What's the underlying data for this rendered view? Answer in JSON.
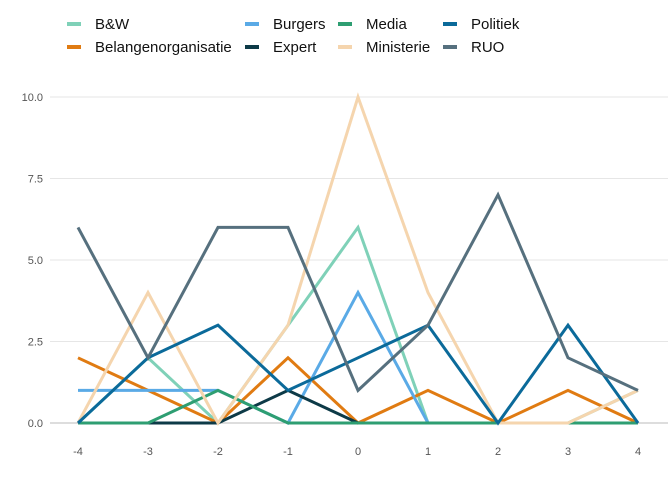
{
  "chart_data": {
    "type": "line",
    "x": [
      -4,
      -3,
      -2,
      -1,
      0,
      1,
      2,
      3,
      4
    ],
    "x_tick_labels": [
      "-4",
      "-3",
      "-2",
      "-1",
      "0",
      "1",
      "2",
      "3",
      "4"
    ],
    "ylim": [
      0,
      10
    ],
    "y_ticks": [
      0,
      2.5,
      5,
      7.5,
      10
    ],
    "y_tick_labels": [
      "0.0",
      "2.5",
      "5.0",
      "7.5",
      "10.0"
    ],
    "grid": "horizontal",
    "legend_position": "top",
    "series": [
      {
        "name": "B&W",
        "color": "#7fd1b8",
        "values": [
          0,
          2,
          0,
          3,
          6,
          0,
          0,
          0,
          1
        ]
      },
      {
        "name": "Belangenorganisatie",
        "color": "#e07b12",
        "values": [
          2,
          1,
          0,
          2,
          0,
          1,
          0,
          1,
          0
        ]
      },
      {
        "name": "Burgers",
        "color": "#5aaae6",
        "values": [
          1,
          1,
          1,
          0,
          4,
          0,
          0,
          0,
          0
        ]
      },
      {
        "name": "Expert",
        "color": "#0d3a47",
        "values": [
          0,
          0,
          0,
          1,
          0,
          0,
          0,
          0,
          0
        ]
      },
      {
        "name": "Media",
        "color": "#2e9e72",
        "values": [
          0,
          0,
          1,
          0,
          0,
          0,
          0,
          0,
          0
        ]
      },
      {
        "name": "Ministerie",
        "color": "#f5d5ae",
        "values": [
          0,
          4,
          0,
          3,
          10,
          4,
          0,
          0,
          1
        ]
      },
      {
        "name": "Politiek",
        "color": "#0b6a9a",
        "values": [
          0,
          2,
          3,
          1,
          2,
          3,
          0,
          3,
          0
        ]
      },
      {
        "name": "RUO",
        "color": "#56707e",
        "values": [
          6,
          2,
          6,
          6,
          1,
          3,
          7,
          2,
          1
        ]
      }
    ]
  }
}
